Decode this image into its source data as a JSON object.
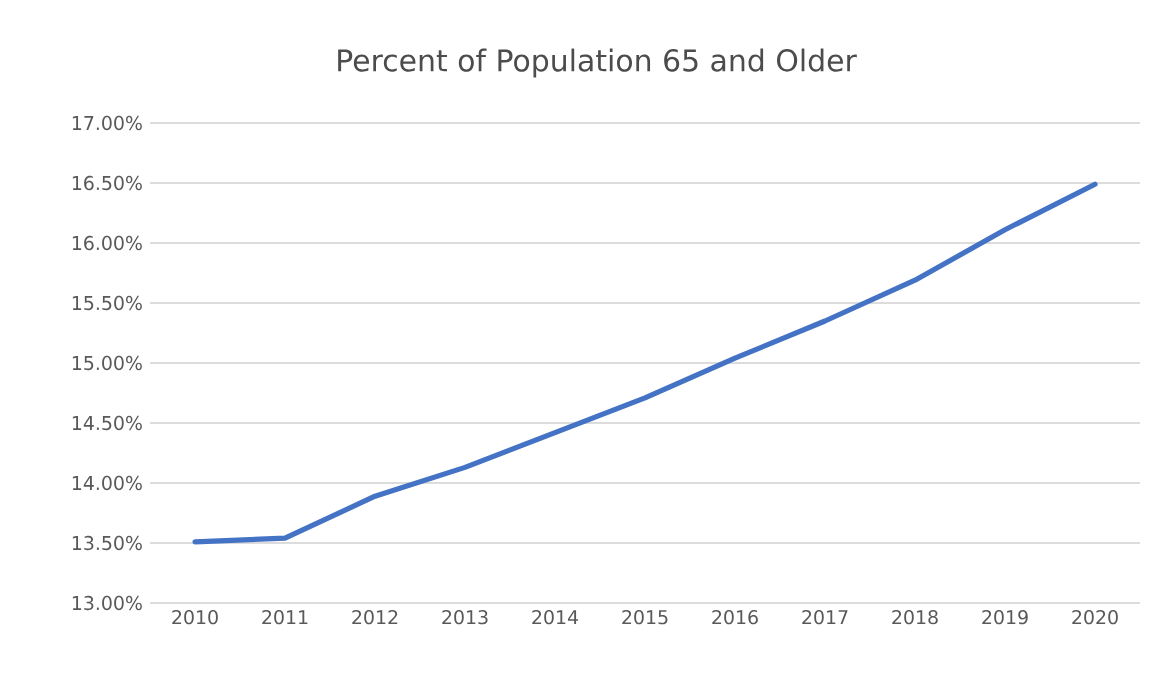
{
  "chart_data": {
    "type": "line",
    "title": "Percent of Population 65 and Older",
    "categories": [
      "2010",
      "2011",
      "2012",
      "2013",
      "2014",
      "2015",
      "2016",
      "2017",
      "2018",
      "2019",
      "2020"
    ],
    "values": [
      13.51,
      13.54,
      13.89,
      14.13,
      14.42,
      14.71,
      15.04,
      15.35,
      15.69,
      16.11,
      16.49
    ],
    "color": "#4472c4",
    "ylim": [
      13,
      17
    ],
    "yticks": [
      {
        "value": 13,
        "label": "13.00%"
      },
      {
        "value": 13.5,
        "label": "13.50%"
      },
      {
        "value": 14,
        "label": "14.00%"
      },
      {
        "value": 14.5,
        "label": "14.50%"
      },
      {
        "value": 15,
        "label": "15.00%"
      },
      {
        "value": 15.5,
        "label": "15.50%"
      },
      {
        "value": 16,
        "label": "16.00%"
      },
      {
        "value": 16.5,
        "label": "16.50%"
      },
      {
        "value": 17,
        "label": "17.00%"
      }
    ],
    "grid": "y",
    "marker": "none",
    "line_style": "solid"
  }
}
